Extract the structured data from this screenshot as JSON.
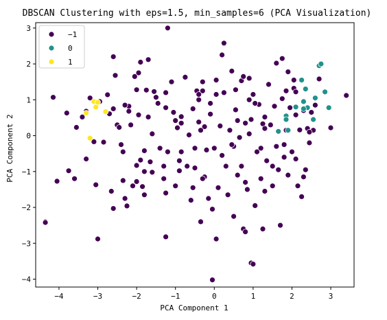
{
  "chart_data": {
    "type": "scatter",
    "title": "DBSCAN Clustering with eps=1.5, min_samples=6 (PCA Visualization)",
    "xlabel": "PCA Component 1",
    "ylabel": "PCA Component 2",
    "xlim": [
      -4.6,
      3.6
    ],
    "ylim": [
      -4.22,
      3.15
    ],
    "x_ticks": [
      -4,
      -3,
      -2,
      -1,
      0,
      1,
      2,
      3
    ],
    "y_ticks": [
      -4,
      -3,
      -2,
      -1,
      0,
      1,
      2,
      3
    ],
    "grid": false,
    "legend": {
      "position": "top-left",
      "entries": [
        "−1",
        "0",
        "1"
      ]
    },
    "series": [
      {
        "name": "−1",
        "color": "#440154",
        "points": [
          [
            -4.35,
            -2.4
          ],
          [
            -4.15,
            1.07
          ],
          [
            -4.05,
            -1.27
          ],
          [
            -3.8,
            0.63
          ],
          [
            -3.75,
            -0.98
          ],
          [
            -3.6,
            -1.2
          ],
          [
            -3.55,
            0.23
          ],
          [
            -3.4,
            0.52
          ],
          [
            -3.3,
            0.68
          ],
          [
            -3.2,
            1.05
          ],
          [
            -3.1,
            -0.17
          ],
          [
            -3.05,
            -1.37
          ],
          [
            -3.0,
            -2.88
          ],
          [
            -2.95,
            0.95
          ],
          [
            -2.85,
            -0.18
          ],
          [
            -2.75,
            1.14
          ],
          [
            -2.7,
            0.61
          ],
          [
            -2.65,
            -1.55
          ],
          [
            -2.6,
            0.75
          ],
          [
            -2.55,
            1.68
          ],
          [
            -2.5,
            0.3
          ],
          [
            -2.45,
            0.23
          ],
          [
            -2.4,
            -0.25
          ],
          [
            -2.35,
            -0.45
          ],
          [
            -2.3,
            -1.75
          ],
          [
            -2.25,
            -1.96
          ],
          [
            -2.2,
            0.82
          ],
          [
            -2.15,
            0.3
          ],
          [
            -2.1,
            -1.4
          ],
          [
            -2.05,
            1.65
          ],
          [
            -2.0,
            1.28
          ],
          [
            -1.95,
            0.58
          ],
          [
            -1.9,
            -0.68
          ],
          [
            -1.85,
            -1.42
          ],
          [
            -1.8,
            -1.0
          ],
          [
            -1.75,
            1.27
          ],
          [
            -1.7,
            0.52
          ],
          [
            -1.65,
            -0.73
          ],
          [
            -1.6,
            0.05
          ],
          [
            -1.5,
            1.07
          ],
          [
            -1.45,
            0.9
          ],
          [
            -1.4,
            -0.35
          ],
          [
            -1.3,
            -1.2
          ],
          [
            -1.25,
            0.78
          ],
          [
            -1.2,
            -0.45
          ],
          [
            -1.1,
            1.5
          ],
          [
            -1.0,
            -1.4
          ],
          [
            -0.95,
            0.22
          ],
          [
            -0.9,
            -0.7
          ],
          [
            -0.85,
            0.53
          ],
          [
            -0.75,
            1.63
          ],
          [
            -0.7,
            -0.85
          ],
          [
            -0.65,
            0.02
          ],
          [
            -0.6,
            -1.8
          ],
          [
            -0.55,
            0.75
          ],
          [
            -0.5,
            -0.35
          ],
          [
            -0.45,
            1.25
          ],
          [
            -0.4,
            0.38
          ],
          [
            -0.35,
            -2.4
          ],
          [
            -0.3,
            1.25
          ],
          [
            -0.25,
            0.25
          ],
          [
            -0.2,
            -0.4
          ],
          [
            -0.15,
            -1.75
          ],
          [
            -0.1,
            0.6
          ],
          [
            -0.05,
            -2.05
          ],
          [
            0.0,
            -0.35
          ],
          [
            0.05,
            1.55
          ],
          [
            0.1,
            -1.45
          ],
          [
            0.15,
            0.27
          ],
          [
            0.2,
            -0.55
          ],
          [
            0.25,
            2.58
          ],
          [
            0.3,
            -0.85
          ],
          [
            0.35,
            -1.65
          ],
          [
            0.4,
            0.15
          ],
          [
            0.45,
            1.8
          ],
          [
            0.5,
            -2.25
          ],
          [
            0.55,
            0.72
          ],
          [
            0.6,
            -1.1
          ],
          [
            0.65,
            -0.05
          ],
          [
            0.7,
            1.53
          ],
          [
            0.75,
            -2.6
          ],
          [
            0.8,
            0.35
          ],
          [
            0.85,
            -1.5
          ],
          [
            0.9,
            0.05
          ],
          [
            0.95,
            -3.55
          ],
          [
            1.0,
            1.15
          ],
          [
            1.05,
            -1.95
          ],
          [
            1.1,
            -0.45
          ],
          [
            1.15,
            0.87
          ],
          [
            1.2,
            -1.2
          ],
          [
            1.25,
            0.33
          ],
          [
            1.3,
            0.2
          ],
          [
            1.35,
            -0.7
          ],
          [
            1.4,
            1.43
          ],
          [
            1.45,
            0.3
          ],
          [
            1.5,
            -1.4
          ],
          [
            1.55,
            0.82
          ],
          [
            1.6,
            -0.3
          ],
          [
            1.65,
            -0.95
          ],
          [
            1.7,
            -2.5
          ],
          [
            1.75,
            1.03
          ],
          [
            1.8,
            -0.25
          ],
          [
            1.85,
            0.15
          ],
          [
            1.9,
            -1.1
          ],
          [
            1.95,
            0.78
          ],
          [
            2.0,
            -0.45
          ],
          [
            2.05,
            1.32
          ],
          [
            2.1,
            0.58
          ],
          [
            2.15,
            -1.4
          ],
          [
            2.2,
            0.16
          ],
          [
            2.25,
            -1.7
          ],
          [
            2.3,
            0.7
          ],
          [
            2.35,
            -0.95
          ],
          [
            2.4,
            0.2
          ],
          [
            2.45,
            -0.2
          ],
          [
            2.5,
            0.65
          ],
          [
            2.55,
            0.15
          ],
          [
            2.6,
            0.85
          ],
          [
            2.7,
            1.58
          ],
          [
            3.0,
            0.22
          ],
          [
            3.4,
            1.12
          ],
          [
            -2.2,
            0.68
          ],
          [
            -1.55,
            1.23
          ],
          [
            -0.85,
            0.35
          ],
          [
            -0.1,
            0.9
          ],
          [
            0.6,
            0.42
          ],
          [
            1.3,
            0.52
          ],
          [
            -3.3,
            -0.65
          ],
          [
            -2.0,
            -0.83
          ],
          [
            -1.6,
            -1.02
          ],
          [
            0.5,
            -0.3
          ],
          [
            1.2,
            -0.35
          ],
          [
            -0.5,
            -0.9
          ],
          [
            1.8,
            -0.6
          ],
          [
            -1.0,
            0.42
          ],
          [
            0.25,
            1.2
          ],
          [
            2.1,
            -0.65
          ],
          [
            -0.4,
            1.0
          ],
          [
            0.9,
            1.6
          ],
          [
            0.95,
            0.45
          ],
          [
            1.5,
            -0.85
          ],
          [
            1.75,
            2.15
          ],
          [
            1.85,
            1.25
          ],
          [
            2.1,
            1.22
          ],
          [
            0.05,
            1.15
          ],
          [
            -1.05,
            0.65
          ],
          [
            -2.3,
            0.85
          ],
          [
            -1.95,
            1.75
          ],
          [
            -1.25,
            1.2
          ],
          [
            -0.3,
            1.5
          ],
          [
            0.55,
            1.28
          ],
          [
            1.05,
            0.9
          ],
          [
            0.45,
            -0.25
          ],
          [
            -0.25,
            -1.15
          ],
          [
            0.8,
            -1.3
          ],
          [
            -1.25,
            -1.6
          ],
          [
            -1.8,
            -1.65
          ],
          [
            -1.8,
            -0.42
          ],
          [
            -2.35,
            -1.25
          ],
          [
            1.3,
            -1.55
          ],
          [
            -1.7,
            2.12
          ],
          [
            -2.6,
            -2.03
          ],
          [
            -2.0,
            -1.28
          ],
          [
            -0.85,
            -0.45
          ],
          [
            0.7,
            -0.85
          ],
          [
            -0.55,
            -1.45
          ],
          [
            -0.3,
            -1.2
          ],
          [
            -1.3,
            -0.85
          ],
          [
            2.3,
            -1.15
          ],
          [
            2.45,
            0.1
          ],
          [
            -0.9,
            -0.98
          ],
          [
            -0.35,
            0.15
          ],
          [
            1.25,
            -2.6
          ],
          [
            1.0,
            -3.58
          ],
          [
            -0.05,
            -4.02
          ],
          [
            0.05,
            -2.88
          ],
          [
            0.8,
            -2.68
          ],
          [
            -1.25,
            -2.82
          ],
          [
            -3.0,
            -2.88
          ],
          [
            -4.35,
            -2.42
          ],
          [
            1.6,
            2.02
          ],
          [
            1.9,
            1.78
          ],
          [
            2.05,
            1.55
          ],
          [
            -1.2,
            3.0
          ],
          [
            -1.9,
            2.05
          ],
          [
            -2.6,
            2.2
          ],
          [
            0.2,
            2.25
          ],
          [
            0.75,
            1.65
          ],
          [
            -0.4,
            1.15
          ],
          [
            0.9,
            1.0
          ]
        ]
      },
      {
        "name": "0",
        "color": "#21918c",
        "points": [
          [
            1.65,
            0.12
          ],
          [
            1.85,
            0.55
          ],
          [
            1.9,
            0.15
          ],
          [
            2.1,
            0.8
          ],
          [
            2.25,
            1.55
          ],
          [
            2.3,
            0.95
          ],
          [
            2.35,
            1.3
          ],
          [
            2.4,
            0.78
          ],
          [
            2.55,
            0.45
          ],
          [
            2.6,
            1.05
          ],
          [
            2.7,
            1.95
          ],
          [
            2.75,
            2.0
          ],
          [
            2.85,
            1.22
          ],
          [
            2.95,
            0.78
          ],
          [
            2.3,
            0.75
          ],
          [
            1.85,
            0.45
          ]
        ]
      },
      {
        "name": "1",
        "color": "#fde725",
        "points": [
          [
            -3.3,
            0.63
          ],
          [
            -3.2,
            -0.07
          ],
          [
            -3.1,
            0.95
          ],
          [
            -3.05,
            0.8
          ],
          [
            -3.0,
            0.93
          ],
          [
            -2.8,
            0.67
          ]
        ]
      }
    ]
  }
}
